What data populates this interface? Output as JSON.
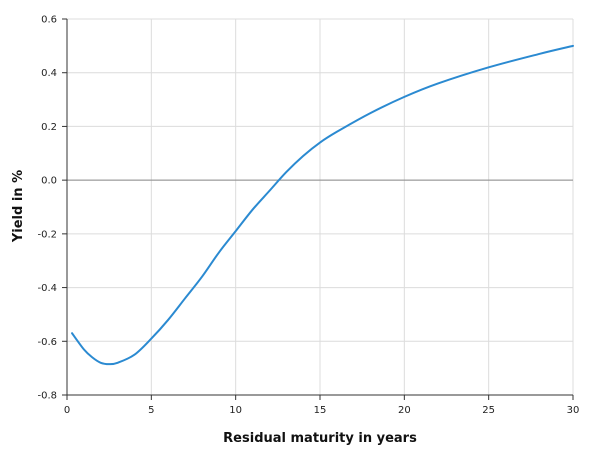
{
  "chart_data": {
    "type": "line",
    "xlabel": "Residual maturity in years",
    "ylabel": "Yield in %",
    "xlim": [
      0,
      30
    ],
    "ylim": [
      -0.8,
      0.6
    ],
    "x_ticks": [
      0,
      5,
      10,
      15,
      20,
      25,
      30
    ],
    "y_ticks": [
      -0.8,
      -0.6,
      -0.4,
      -0.2,
      0.0,
      0.2,
      0.4,
      0.6
    ],
    "x_tick_labels": [
      "0",
      "5",
      "10",
      "15",
      "20",
      "25",
      "30"
    ],
    "y_tick_labels": [
      "-0.8",
      "-0.6",
      "-0.4",
      "-0.2",
      "0.0",
      "0.2",
      "0.4",
      "0.6"
    ],
    "grid": true,
    "series": [
      {
        "color": "#2b8ad1",
        "x": [
          0.3,
          1,
          1.5,
          2,
          2.5,
          3,
          4,
          5,
          6,
          7,
          8,
          9,
          10,
          11,
          12,
          13,
          14,
          15,
          16,
          18,
          20,
          22,
          25,
          28,
          30
        ],
        "y": [
          -0.57,
          -0.63,
          -0.66,
          -0.68,
          -0.685,
          -0.68,
          -0.65,
          -0.59,
          -0.52,
          -0.44,
          -0.36,
          -0.27,
          -0.19,
          -0.11,
          -0.04,
          0.03,
          0.09,
          0.14,
          0.18,
          0.25,
          0.31,
          0.36,
          0.42,
          0.47,
          0.5
        ]
      }
    ]
  }
}
